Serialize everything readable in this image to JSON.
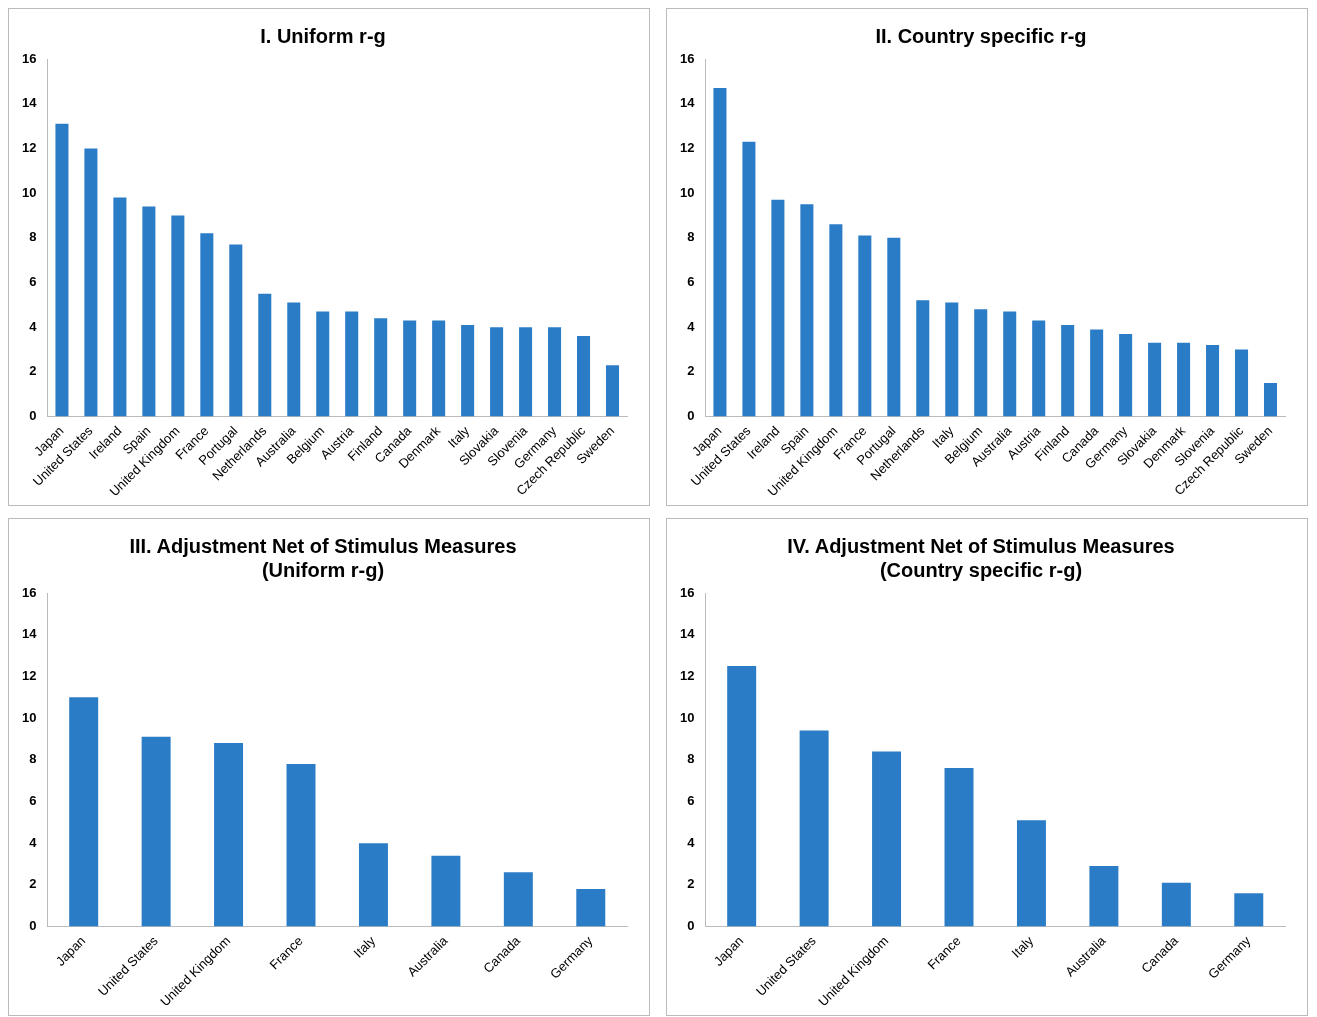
{
  "chart_data": [
    {
      "type": "bar",
      "title": "I. Uniform r-g",
      "categories": [
        "Japan",
        "United States",
        "Ireland",
        "Spain",
        "United Kingdom",
        "France",
        "Portugal",
        "Netherlands",
        "Australia",
        "Belgium",
        "Austria",
        "Finland",
        "Canada",
        "Denmark",
        "Italy",
        "Slovakia",
        "Slovenia",
        "Germany",
        "Czech Republic",
        "Sweden"
      ],
      "values": [
        13.1,
        12.0,
        9.8,
        9.4,
        9.0,
        8.2,
        7.7,
        5.5,
        5.1,
        4.7,
        4.7,
        4.4,
        4.3,
        4.3,
        4.1,
        4.0,
        4.0,
        4.0,
        3.6,
        2.3
      ],
      "color": "#2a7cc6",
      "ylim": [
        0,
        16
      ],
      "yticks": [
        0,
        2,
        4,
        6,
        8,
        10,
        12,
        14,
        16
      ],
      "grid": false,
      "legend": false
    },
    {
      "type": "bar",
      "title": "II. Country specific r-g",
      "categories": [
        "Japan",
        "United States",
        "Ireland",
        "Spain",
        "United Kingdom",
        "France",
        "Portugal",
        "Netherlands",
        "Italy",
        "Belgium",
        "Australia",
        "Austria",
        "Finland",
        "Canada",
        "Germany",
        "Slovakia",
        "Denmark",
        "Slovenia",
        "Czech Republic",
        "Sweden"
      ],
      "values": [
        14.7,
        12.3,
        9.7,
        9.5,
        8.6,
        8.1,
        8.0,
        5.2,
        5.1,
        4.8,
        4.7,
        4.3,
        4.1,
        3.9,
        3.7,
        3.3,
        3.3,
        3.2,
        3.0,
        1.5
      ],
      "color": "#2a7cc6",
      "ylim": [
        0,
        16
      ],
      "yticks": [
        0,
        2,
        4,
        6,
        8,
        10,
        12,
        14,
        16
      ],
      "grid": false,
      "legend": false
    },
    {
      "type": "bar",
      "title": "III. Adjustment Net of Stimulus Measures\n(Uniform r-g)",
      "categories": [
        "Japan",
        "United States",
        "United Kingdom",
        "France",
        "Italy",
        "Australia",
        "Canada",
        "Germany"
      ],
      "values": [
        11.0,
        9.1,
        8.8,
        7.8,
        4.0,
        3.4,
        2.6,
        1.8
      ],
      "color": "#2a7cc6",
      "ylim": [
        0,
        16
      ],
      "yticks": [
        0,
        2,
        4,
        6,
        8,
        10,
        12,
        14,
        16
      ],
      "grid": false,
      "legend": false
    },
    {
      "type": "bar",
      "title": "IV. Adjustment Net of Stimulus Measures\n(Country specific r-g)",
      "categories": [
        "Japan",
        "United States",
        "United Kingdom",
        "France",
        "Italy",
        "Australia",
        "Canada",
        "Germany"
      ],
      "values": [
        12.5,
        9.4,
        8.4,
        7.6,
        5.1,
        2.9,
        2.1,
        1.6
      ],
      "color": "#2a7cc6",
      "ylim": [
        0,
        16
      ],
      "yticks": [
        0,
        2,
        4,
        6,
        8,
        10,
        12,
        14,
        16
      ],
      "grid": false,
      "legend": false
    }
  ]
}
